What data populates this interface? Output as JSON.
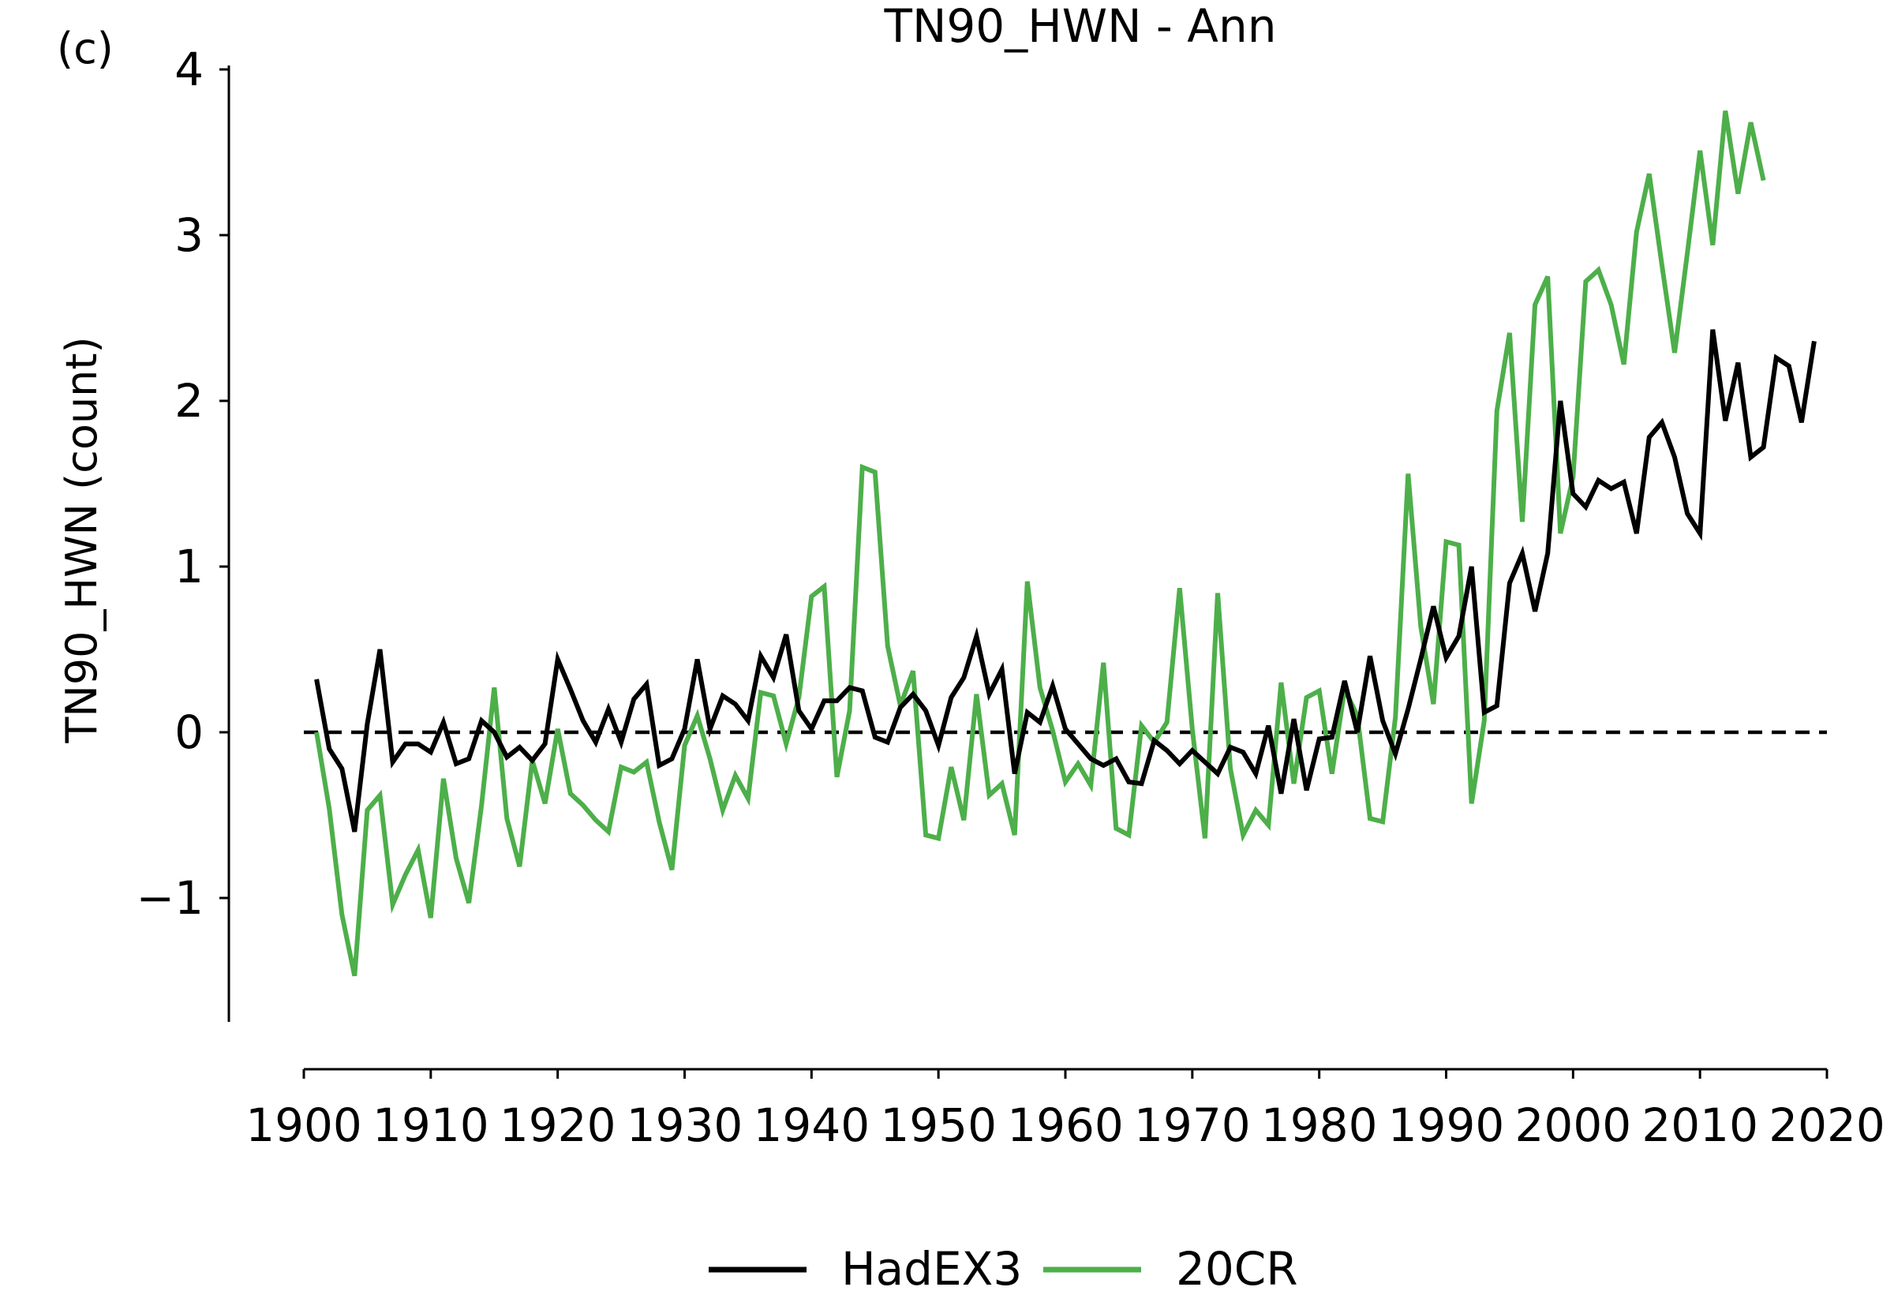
{
  "panel_label": "(c)",
  "chart_data": {
    "type": "line",
    "title": "TN90_HWN - Ann",
    "xlabel": "",
    "ylabel": "TN90_HWN (count)",
    "xlim": [
      1900,
      2020
    ],
    "ylim": [
      -1.75,
      4.0
    ],
    "x_ticks": [
      1900,
      1910,
      1920,
      1930,
      1940,
      1950,
      1960,
      1970,
      1980,
      1990,
      2000,
      2010,
      2020
    ],
    "x_tick_labels": [
      "1900",
      "1910",
      "1920",
      "1930",
      "1940",
      "1950",
      "1960",
      "1970",
      "1980",
      "1990",
      "2000",
      "2010",
      "2020"
    ],
    "y_ticks": [
      -1,
      0,
      1,
      2,
      3,
      4
    ],
    "y_tick_labels": [
      "−1",
      "0",
      "1",
      "2",
      "3",
      "4"
    ],
    "grid": false,
    "legend_position": "bottom-center",
    "reference_line": {
      "y": 0,
      "style": "dashed",
      "color": "#000000"
    },
    "series": [
      {
        "name": "HadEX3",
        "color": "#000000",
        "x_start": 1901,
        "values": [
          0.32,
          -0.1,
          -0.22,
          -0.6,
          0.05,
          0.5,
          -0.18,
          -0.07,
          -0.07,
          -0.12,
          0.06,
          -0.19,
          -0.16,
          0.07,
          0.0,
          -0.15,
          -0.09,
          -0.17,
          -0.07,
          0.44,
          0.26,
          0.07,
          -0.06,
          0.14,
          -0.06,
          0.2,
          0.29,
          -0.2,
          -0.16,
          0.02,
          0.44,
          0.02,
          0.22,
          0.17,
          0.07,
          0.46,
          0.33,
          0.59,
          0.13,
          0.02,
          0.19,
          0.19,
          0.27,
          0.25,
          -0.03,
          -0.06,
          0.15,
          0.23,
          0.13,
          -0.08,
          0.21,
          0.33,
          0.58,
          0.23,
          0.38,
          -0.25,
          0.12,
          0.06,
          0.28,
          0.02,
          -0.07,
          -0.16,
          -0.2,
          -0.16,
          -0.3,
          -0.31,
          -0.05,
          -0.11,
          -0.19,
          -0.11,
          -0.18,
          -0.25,
          -0.09,
          -0.12,
          -0.25,
          0.04,
          -0.37,
          0.08,
          -0.35,
          -0.04,
          -0.03,
          0.31,
          0.0,
          0.46,
          0.07,
          -0.13,
          0.14,
          0.44,
          0.76,
          0.45,
          0.58,
          1.0,
          0.12,
          0.16,
          0.9,
          1.08,
          0.73,
          1.08,
          2.0,
          1.44,
          1.36,
          1.52,
          1.47,
          1.51,
          1.2,
          1.78,
          1.87,
          1.66,
          1.32,
          1.2,
          2.43,
          1.88,
          2.23,
          1.66,
          1.72,
          2.26,
          2.21,
          1.87,
          2.36
        ]
      },
      {
        "name": "20CR",
        "color": "#4daf4a",
        "x_start": 1901,
        "values": [
          0.0,
          -0.46,
          -1.1,
          -1.47,
          -0.47,
          -0.38,
          -1.04,
          -0.86,
          -0.71,
          -1.12,
          -0.28,
          -0.76,
          -1.03,
          -0.44,
          0.27,
          -0.52,
          -0.81,
          -0.17,
          -0.43,
          0.02,
          -0.37,
          -0.44,
          -0.53,
          -0.6,
          -0.21,
          -0.24,
          -0.18,
          -0.54,
          -0.83,
          -0.08,
          0.1,
          -0.16,
          -0.47,
          -0.26,
          -0.4,
          0.24,
          0.22,
          -0.07,
          0.21,
          0.82,
          0.88,
          -0.27,
          0.13,
          1.6,
          1.57,
          0.52,
          0.16,
          0.37,
          -0.62,
          -0.64,
          -0.21,
          -0.53,
          0.23,
          -0.38,
          -0.31,
          -0.62,
          0.91,
          0.27,
          0.01,
          -0.3,
          -0.19,
          -0.32,
          0.42,
          -0.58,
          -0.62,
          0.04,
          -0.06,
          0.06,
          0.87,
          0.02,
          -0.64,
          0.84,
          -0.22,
          -0.62,
          -0.47,
          -0.56,
          0.3,
          -0.31,
          0.21,
          0.25,
          -0.25,
          0.26,
          0.1,
          -0.52,
          -0.54,
          0.09,
          1.56,
          0.64,
          0.17,
          1.15,
          1.13,
          -0.43,
          0.07,
          1.94,
          2.41,
          1.27,
          2.58,
          2.75,
          1.2,
          1.54,
          2.72,
          2.79,
          2.58,
          2.22,
          3.02,
          3.37,
          2.82,
          2.29,
          2.89,
          3.51,
          2.94,
          3.75,
          3.25,
          3.68,
          3.33
        ]
      }
    ]
  }
}
